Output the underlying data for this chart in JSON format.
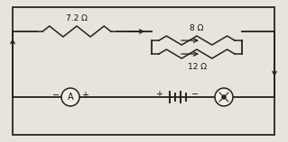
{
  "bg_color": "#c8c4b8",
  "paper_color": "#e8e4dc",
  "frame_color": "#333333",
  "wire_color": "#222222",
  "resistor_color": "#222222",
  "label_7_2": "7.2 Ω",
  "label_8": "8 Ω",
  "label_12": "12 Ω",
  "fig_width": 3.19,
  "fig_height": 1.58,
  "dpi": 100
}
